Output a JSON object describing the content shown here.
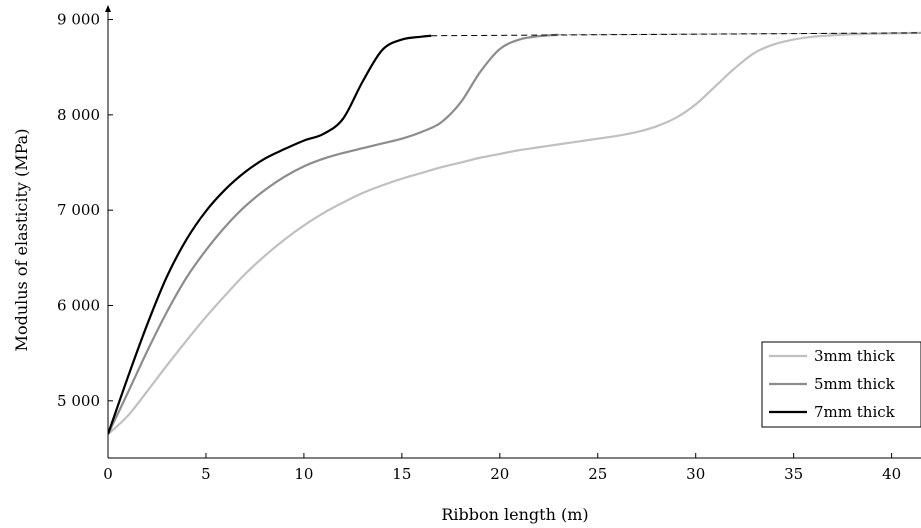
{
  "chart_data": {
    "type": "line",
    "xlabel": "Ribbon length (m)",
    "ylabel": "Modulus of elasticity (MPa)",
    "xlim": [
      0,
      41.5
    ],
    "ylim": [
      4400,
      9100
    ],
    "x_ticks": [
      0,
      5,
      10,
      15,
      20,
      25,
      30,
      35,
      40
    ],
    "y_ticks": [
      5000,
      6000,
      7000,
      8000,
      9000
    ],
    "x_tick_labels": [
      "0",
      "5",
      "10",
      "15",
      "20",
      "25",
      "30",
      "35",
      "40"
    ],
    "y_tick_labels": [
      "5 000",
      "6 000",
      "7 000",
      "8 000",
      "9 000"
    ],
    "legend_position": "bottom-right",
    "grid": false,
    "series": [
      {
        "name": "3mm thick",
        "color": "#c0c0c0",
        "points": [
          [
            0,
            4650
          ],
          [
            1,
            4840
          ],
          [
            2,
            5100
          ],
          [
            3,
            5370
          ],
          [
            4,
            5630
          ],
          [
            5,
            5880
          ],
          [
            6,
            6110
          ],
          [
            7,
            6330
          ],
          [
            8,
            6520
          ],
          [
            9,
            6690
          ],
          [
            10,
            6840
          ],
          [
            11,
            6970
          ],
          [
            12,
            7080
          ],
          [
            13,
            7180
          ],
          [
            14,
            7260
          ],
          [
            15,
            7330
          ],
          [
            16,
            7390
          ],
          [
            17,
            7450
          ],
          [
            18,
            7500
          ],
          [
            19,
            7550
          ],
          [
            20,
            7590
          ],
          [
            21,
            7630
          ],
          [
            22,
            7660
          ],
          [
            23,
            7690
          ],
          [
            24,
            7720
          ],
          [
            25,
            7750
          ],
          [
            26,
            7780
          ],
          [
            27,
            7820
          ],
          [
            28,
            7880
          ],
          [
            29,
            7970
          ],
          [
            30,
            8110
          ],
          [
            31,
            8300
          ],
          [
            32,
            8490
          ],
          [
            33,
            8650
          ],
          [
            34,
            8740
          ],
          [
            35,
            8790
          ],
          [
            36,
            8820
          ],
          [
            37,
            8835
          ],
          [
            38,
            8845
          ],
          [
            39,
            8850
          ],
          [
            40,
            8855
          ],
          [
            41.5,
            8860
          ]
        ],
        "dashed_extension": []
      },
      {
        "name": "5mm thick",
        "color": "#8c8c8c",
        "points": [
          [
            0,
            4650
          ],
          [
            1,
            5080
          ],
          [
            2,
            5520
          ],
          [
            3,
            5930
          ],
          [
            4,
            6290
          ],
          [
            5,
            6580
          ],
          [
            6,
            6830
          ],
          [
            7,
            7040
          ],
          [
            8,
            7210
          ],
          [
            9,
            7350
          ],
          [
            10,
            7460
          ],
          [
            11,
            7540
          ],
          [
            12,
            7600
          ],
          [
            13,
            7650
          ],
          [
            14,
            7700
          ],
          [
            15,
            7750
          ],
          [
            16,
            7820
          ],
          [
            17,
            7920
          ],
          [
            18,
            8130
          ],
          [
            19,
            8450
          ],
          [
            20,
            8690
          ],
          [
            21,
            8790
          ],
          [
            22,
            8825
          ],
          [
            23,
            8840
          ]
        ],
        "dashed_extension": [
          [
            23,
            8840
          ],
          [
            41.5,
            8860
          ]
        ]
      },
      {
        "name": "7mm thick",
        "color": "#000000",
        "points": [
          [
            0,
            4650
          ],
          [
            1,
            5240
          ],
          [
            2,
            5800
          ],
          [
            3,
            6300
          ],
          [
            4,
            6690
          ],
          [
            5,
            6990
          ],
          [
            6,
            7220
          ],
          [
            7,
            7400
          ],
          [
            8,
            7540
          ],
          [
            9,
            7640
          ],
          [
            10,
            7730
          ],
          [
            11,
            7800
          ],
          [
            12,
            7960
          ],
          [
            13,
            8350
          ],
          [
            14,
            8680
          ],
          [
            15,
            8790
          ],
          [
            16,
            8820
          ],
          [
            16.5,
            8830
          ]
        ],
        "dashed_extension": [
          [
            16.5,
            8830
          ],
          [
            41.5,
            8860
          ]
        ]
      }
    ]
  }
}
